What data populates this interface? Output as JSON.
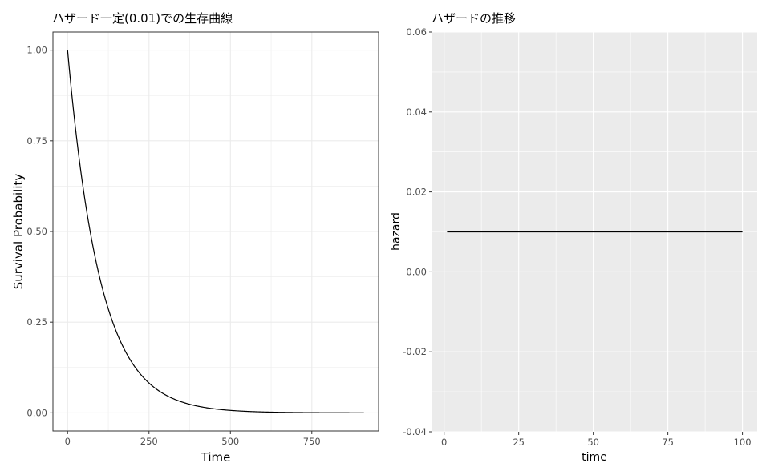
{
  "chart_data": [
    {
      "type": "line",
      "title": "ハザード一定(0.01)での生存曲線",
      "xlabel": "Time",
      "ylabel": "Survival Probability",
      "xlim": [
        -45,
        955
      ],
      "ylim": [
        -0.05,
        1.05
      ],
      "x_ticks": [
        0,
        250,
        500,
        750
      ],
      "x_tick_labels": [
        "0",
        "250",
        "500",
        "750"
      ],
      "y_ticks": [
        0,
        0.25,
        0.5,
        0.75,
        1.0
      ],
      "y_tick_labels": [
        "0.00",
        "0.25",
        "0.50",
        "0.75",
        "1.00"
      ],
      "grid": true,
      "theme": "bw",
      "series": [
        {
          "function": "exp(-0.01*t)",
          "x": [
            0,
            25,
            50,
            75,
            100,
            125,
            150,
            175,
            200,
            250,
            300,
            350,
            400,
            450,
            500,
            550,
            600,
            650,
            700,
            750,
            800,
            850,
            900,
            910
          ],
          "values": [
            1.0,
            0.779,
            0.607,
            0.472,
            0.368,
            0.287,
            0.223,
            0.174,
            0.135,
            0.082,
            0.05,
            0.03,
            0.018,
            0.011,
            0.007,
            0.004,
            0.002,
            0.0015,
            0.0009,
            0.0006,
            0.0003,
            0.0002,
            0.0001,
            0.0001
          ],
          "color": "#000000"
        }
      ]
    },
    {
      "type": "line",
      "title": "ハザードの推移",
      "xlabel": "time",
      "ylabel": "hazard",
      "xlim": [
        -3.95,
        104.95
      ],
      "ylim": [
        -0.04,
        0.06
      ],
      "x_ticks": [
        0,
        25,
        50,
        75,
        100
      ],
      "x_tick_labels": [
        "0",
        "25",
        "50",
        "75",
        "100"
      ],
      "y_ticks": [
        -0.04,
        -0.02,
        0.0,
        0.02,
        0.04,
        0.06
      ],
      "y_tick_labels": [
        "-0.04",
        "-0.02",
        "0.00",
        "0.02",
        "0.04",
        "0.06"
      ],
      "grid": true,
      "theme": "grey",
      "panel_color": "#ebebeb",
      "series": [
        {
          "x": [
            1,
            100
          ],
          "values": [
            0.01,
            0.01
          ],
          "color": "#000000"
        }
      ]
    }
  ]
}
